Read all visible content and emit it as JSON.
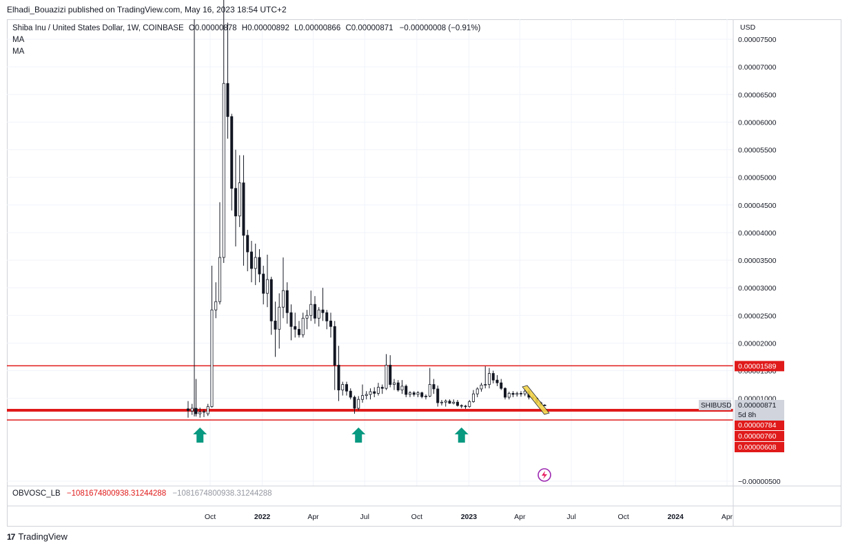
{
  "header": {
    "published": "Elhadi_Bouazizi published on TradingView.com, May 16, 2023 18:54 UTC+2"
  },
  "legend": {
    "symbol": "Shiba Inu / United States Dollar, 1W, COINBASE",
    "o_label": "O",
    "o": "0.00000878",
    "h_label": "H",
    "h": "0.00000892",
    "l_label": "L",
    "l": "0.00000866",
    "c_label": "C",
    "c": "0.00000871",
    "change": "−0.00000008 (−0.91%)",
    "ma1": "MA",
    "ma2": "MA"
  },
  "oscillator": {
    "name": "OBVOSC_LB",
    "value": "−1081674800938.31244288",
    "value2": "−1081674800938.31244288"
  },
  "axis": {
    "currency": "USD"
  },
  "footer": {
    "brand": "TradingView"
  },
  "colors": {
    "up": "#ffffff",
    "down": "#131722",
    "level": "#e01a1a",
    "arrow": "#089981",
    "grid": "#f0f3fa"
  },
  "chart_data": {
    "type": "candlestick",
    "symbol": "SHIBUSD",
    "y_ticks": [
      -5e-06,
      1e-05,
      1.5e-05,
      2e-05,
      2.5e-05,
      3e-05,
      3.5e-05,
      4e-05,
      4.5e-05,
      5e-05,
      5.5e-05,
      6e-05,
      6.5e-05,
      7e-05,
      7.5e-05
    ],
    "y_tick_labels": [
      "−0.00000500",
      "0.00001000",
      "0.00001500",
      "0.00002000",
      "0.00002500",
      "0.00003000",
      "0.00003500",
      "0.00004000",
      "0.00004500",
      "0.00005000",
      "0.00005500",
      "0.00006000",
      "0.00006500",
      "0.00007000",
      "0.00007500"
    ],
    "ylim": [
      -6e-06,
      7.85e-05
    ],
    "x_labels": [
      "Oct",
      "2022",
      "Apr",
      "Jul",
      "Oct",
      "2023",
      "Apr",
      "Jul",
      "Oct",
      "2024",
      "Apr"
    ],
    "x_label_dates": [
      "2021-10-01",
      "2022-01-01",
      "2022-04-01",
      "2022-07-01",
      "2022-10-01",
      "2023-01-01",
      "2023-04-01",
      "2023-07-01",
      "2023-10-01",
      "2024-01-01",
      "2024-04-01"
    ],
    "horizontal_levels": [
      {
        "value": 1.589e-05,
        "label": "0.00001589",
        "color": "#e01a1a"
      },
      {
        "value": 7.84e-06,
        "label": "0.00000784",
        "color": "#e01a1a"
      },
      {
        "value": 7.6e-06,
        "label": "0.00000760",
        "color": "#e01a1a"
      },
      {
        "value": 6.08e-06,
        "label": "0.00000608",
        "color": "#e01a1a"
      }
    ],
    "last_price": {
      "symbol": "SHIBUSD",
      "value": "0.00000871",
      "countdown": "5d 8h"
    },
    "buy_arrows": [
      "2021-09-13",
      "2022-06-20",
      "2022-12-19"
    ],
    "candles": [
      {
        "d": "2021-08-23",
        "o": 8.1e-06,
        "h": 9.5e-06,
        "l": 6.5e-06,
        "c": 7.8e-06
      },
      {
        "d": "2021-08-30",
        "o": 7.7e-06,
        "h": 9e-06,
        "l": 7e-06,
        "c": 8.2e-06
      },
      {
        "d": "2021-09-06",
        "o": 8.2e-06,
        "h": 1.35e-05,
        "l": 6.7e-06,
        "c": 7.2e-06
      },
      {
        "d": "2021-09-13",
        "o": 7.2e-06,
        "h": 8.3e-06,
        "l": 6.5e-06,
        "c": 7.5e-06
      },
      {
        "d": "2021-09-20",
        "o": 7.5e-06,
        "h": 8e-06,
        "l": 6.6e-06,
        "c": 7.6e-06
      },
      {
        "d": "2021-09-27",
        "o": 7.2e-06,
        "h": 9e-06,
        "l": 6.8e-06,
        "c": 8.5e-06
      },
      {
        "d": "2021-10-04",
        "o": 8.5e-06,
        "h": 3.4e-05,
        "l": 8.3e-06,
        "c": 2.6e-05
      },
      {
        "d": "2021-10-11",
        "o": 2.6e-05,
        "h": 3.1e-05,
        "l": 2.45e-05,
        "c": 2.75e-05
      },
      {
        "d": "2021-10-18",
        "o": 2.75e-05,
        "h": 4.55e-05,
        "l": 2.7e-05,
        "c": 3.55e-05
      },
      {
        "d": "2021-10-25",
        "o": 3.55e-05,
        "h": 8.8e-05,
        "l": 3.45e-05,
        "c": 6.7e-05
      },
      {
        "d": "2021-11-01",
        "o": 6.7e-05,
        "h": 7.8e-05,
        "l": 5.7e-05,
        "c": 6.1e-05
      },
      {
        "d": "2021-11-08",
        "o": 6.1e-05,
        "h": 6.15e-05,
        "l": 4.4e-05,
        "c": 4.8e-05
      },
      {
        "d": "2021-11-15",
        "o": 4.8e-05,
        "h": 5.5e-05,
        "l": 3.75e-05,
        "c": 4.3e-05
      },
      {
        "d": "2021-11-22",
        "o": 4.3e-05,
        "h": 5.4e-05,
        "l": 4.1e-05,
        "c": 4.9e-05
      },
      {
        "d": "2021-11-29",
        "o": 4.9e-05,
        "h": 5.4e-05,
        "l": 3.4e-05,
        "c": 3.95e-05
      },
      {
        "d": "2021-12-06",
        "o": 3.95e-05,
        "h": 4.05e-05,
        "l": 3.3e-05,
        "c": 3.65e-05
      },
      {
        "d": "2021-12-13",
        "o": 3.65e-05,
        "h": 3.85e-05,
        "l": 3.1e-05,
        "c": 3.35e-05
      },
      {
        "d": "2021-12-20",
        "o": 3.35e-05,
        "h": 3.8e-05,
        "l": 3.05e-05,
        "c": 3.55e-05
      },
      {
        "d": "2021-12-27",
        "o": 3.55e-05,
        "h": 3.7e-05,
        "l": 3.1e-05,
        "c": 3.25e-05
      },
      {
        "d": "2022-01-03",
        "o": 3.25e-05,
        "h": 3.4e-05,
        "l": 2.7e-05,
        "c": 2.9e-05
      },
      {
        "d": "2022-01-10",
        "o": 2.9e-05,
        "h": 3.6e-05,
        "l": 2.65e-05,
        "c": 3.15e-05
      },
      {
        "d": "2022-01-17",
        "o": 3.15e-05,
        "h": 3.2e-05,
        "l": 2.15e-05,
        "c": 2.4e-05
      },
      {
        "d": "2022-01-24",
        "o": 2.4e-05,
        "h": 2.75e-05,
        "l": 1.75e-05,
        "c": 2.25e-05
      },
      {
        "d": "2022-01-31",
        "o": 2.25e-05,
        "h": 2.9e-05,
        "l": 1.9e-05,
        "c": 2.65e-05
      },
      {
        "d": "2022-02-07",
        "o": 2.65e-05,
        "h": 3.55e-05,
        "l": 2.45e-05,
        "c": 2.95e-05
      },
      {
        "d": "2022-02-14",
        "o": 2.95e-05,
        "h": 3.1e-05,
        "l": 2.35e-05,
        "c": 2.55e-05
      },
      {
        "d": "2022-02-21",
        "o": 2.55e-05,
        "h": 2.7e-05,
        "l": 2.05e-05,
        "c": 2.3e-05
      },
      {
        "d": "2022-02-28",
        "o": 2.3e-05,
        "h": 2.55e-05,
        "l": 2.1e-05,
        "c": 2.25e-05
      },
      {
        "d": "2022-03-07",
        "o": 2.25e-05,
        "h": 2.4e-05,
        "l": 2.1e-05,
        "c": 2.15e-05
      },
      {
        "d": "2022-03-14",
        "o": 2.15e-05,
        "h": 2.55e-05,
        "l": 2.1e-05,
        "c": 2.45e-05
      },
      {
        "d": "2022-03-21",
        "o": 2.45e-05,
        "h": 2.6e-05,
        "l": 2.25e-05,
        "c": 2.5e-05
      },
      {
        "d": "2022-03-28",
        "o": 2.5e-05,
        "h": 2.95e-05,
        "l": 2.4e-05,
        "c": 2.7e-05
      },
      {
        "d": "2022-04-04",
        "o": 2.7e-05,
        "h": 2.85e-05,
        "l": 2.35e-05,
        "c": 2.45e-05
      },
      {
        "d": "2022-04-11",
        "o": 2.45e-05,
        "h": 2.65e-05,
        "l": 2.3e-05,
        "c": 2.6e-05
      },
      {
        "d": "2022-04-18",
        "o": 2.6e-05,
        "h": 3e-05,
        "l": 2.4e-05,
        "c": 2.55e-05
      },
      {
        "d": "2022-04-25",
        "o": 2.55e-05,
        "h": 2.6e-05,
        "l": 2.25e-05,
        "c": 2.4e-05
      },
      {
        "d": "2022-05-02",
        "o": 2.4e-05,
        "h": 2.55e-05,
        "l": 2.1e-05,
        "c": 2.3e-05
      },
      {
        "d": "2022-05-09",
        "o": 2.3e-05,
        "h": 2.4e-05,
        "l": 1.15e-05,
        "c": 1.6e-05
      },
      {
        "d": "2022-05-16",
        "o": 1.6e-05,
        "h": 1.95e-05,
        "l": 9.5e-06,
        "c": 1.15e-05
      },
      {
        "d": "2022-05-23",
        "o": 1.15e-05,
        "h": 1.3e-05,
        "l": 1.05e-05,
        "c": 1.25e-05
      },
      {
        "d": "2022-05-30",
        "o": 1.25e-05,
        "h": 1.3e-05,
        "l": 1.05e-05,
        "c": 1.13e-05
      },
      {
        "d": "2022-06-06",
        "o": 1.13e-05,
        "h": 1.18e-05,
        "l": 9.8e-06,
        "c": 1.02e-05
      },
      {
        "d": "2022-06-13",
        "o": 1.02e-05,
        "h": 1.05e-05,
        "l": 7.2e-06,
        "c": 8.2e-06
      },
      {
        "d": "2022-06-20",
        "o": 8.2e-06,
        "h": 1.04e-05,
        "l": 7.8e-06,
        "c": 9.8e-06
      },
      {
        "d": "2022-06-27",
        "o": 9.8e-06,
        "h": 1.25e-05,
        "l": 9.2e-06,
        "c": 1.05e-05
      },
      {
        "d": "2022-07-04",
        "o": 1.05e-05,
        "h": 1.13e-05,
        "l": 9.8e-06,
        "c": 1.07e-05
      },
      {
        "d": "2022-07-11",
        "o": 1.07e-05,
        "h": 1.18e-05,
        "l": 9.8e-06,
        "c": 1.12e-05
      },
      {
        "d": "2022-07-18",
        "o": 1.12e-05,
        "h": 1.2e-05,
        "l": 1.02e-05,
        "c": 1.09e-05
      },
      {
        "d": "2022-07-25",
        "o": 1.09e-05,
        "h": 1.28e-05,
        "l": 1.05e-05,
        "c": 1.2e-05
      },
      {
        "d": "2022-08-01",
        "o": 1.2e-05,
        "h": 1.25e-05,
        "l": 1.08e-05,
        "c": 1.18e-05
      },
      {
        "d": "2022-08-08",
        "o": 1.18e-05,
        "h": 1.8e-05,
        "l": 1.15e-05,
        "c": 1.6e-05
      },
      {
        "d": "2022-08-15",
        "o": 1.6e-05,
        "h": 1.78e-05,
        "l": 1.2e-05,
        "c": 1.25e-05
      },
      {
        "d": "2022-08-22",
        "o": 1.25e-05,
        "h": 1.35e-05,
        "l": 1.15e-05,
        "c": 1.28e-05
      },
      {
        "d": "2022-08-29",
        "o": 1.28e-05,
        "h": 1.33e-05,
        "l": 1.12e-05,
        "c": 1.15e-05
      },
      {
        "d": "2022-09-05",
        "o": 1.15e-05,
        "h": 1.33e-05,
        "l": 1.08e-05,
        "c": 1.22e-05
      },
      {
        "d": "2022-09-12",
        "o": 1.22e-05,
        "h": 1.25e-05,
        "l": 1.02e-05,
        "c": 1.07e-05
      },
      {
        "d": "2022-09-19",
        "o": 1.07e-05,
        "h": 1.13e-05,
        "l": 1.02e-05,
        "c": 1.1e-05
      },
      {
        "d": "2022-09-26",
        "o": 1.1e-05,
        "h": 1.13e-05,
        "l": 1.03e-05,
        "c": 1.07e-05
      },
      {
        "d": "2022-10-03",
        "o": 1.07e-05,
        "h": 1.13e-05,
        "l": 1.02e-05,
        "c": 1.1e-05
      },
      {
        "d": "2022-10-10",
        "o": 1.1e-05,
        "h": 1.12e-05,
        "l": 1e-05,
        "c": 1.03e-05
      },
      {
        "d": "2022-10-17",
        "o": 1.03e-05,
        "h": 1.07e-05,
        "l": 9.8e-06,
        "c": 1.04e-05
      },
      {
        "d": "2022-10-24",
        "o": 1.04e-05,
        "h": 1.55e-05,
        "l": 1.02e-05,
        "c": 1.25e-05
      },
      {
        "d": "2022-10-31",
        "o": 1.25e-05,
        "h": 1.35e-05,
        "l": 1.08e-05,
        "c": 1.17e-05
      },
      {
        "d": "2022-11-07",
        "o": 1.17e-05,
        "h": 1.23e-05,
        "l": 8.5e-06,
        "c": 9.2e-06
      },
      {
        "d": "2022-11-14",
        "o": 9.2e-06,
        "h": 9.7e-06,
        "l": 8.7e-06,
        "c": 9.3e-06
      },
      {
        "d": "2022-11-21",
        "o": 9.3e-06,
        "h": 9.8e-06,
        "l": 8.5e-06,
        "c": 9.5e-06
      },
      {
        "d": "2022-11-28",
        "o": 9.5e-06,
        "h": 9.8e-06,
        "l": 9e-06,
        "c": 9.1e-06
      },
      {
        "d": "2022-12-05",
        "o": 9.1e-06,
        "h": 9.8e-06,
        "l": 8.9e-06,
        "c": 9.3e-06
      },
      {
        "d": "2022-12-12",
        "o": 9.3e-06,
        "h": 9.7e-06,
        "l": 8.5e-06,
        "c": 8.7e-06
      },
      {
        "d": "2022-12-19",
        "o": 8.7e-06,
        "h": 8.9e-06,
        "l": 8.2e-06,
        "c": 8.6e-06
      },
      {
        "d": "2022-12-26",
        "o": 8.6e-06,
        "h": 8.8e-06,
        "l": 8.1e-06,
        "c": 8.5e-06
      },
      {
        "d": "2023-01-02",
        "o": 8.5e-06,
        "h": 9.7e-06,
        "l": 8.3e-06,
        "c": 9.4e-06
      },
      {
        "d": "2023-01-09",
        "o": 9.4e-06,
        "h": 1.15e-05,
        "l": 9.2e-06,
        "c": 1.08e-05
      },
      {
        "d": "2023-01-16",
        "o": 1.08e-05,
        "h": 1.2e-05,
        "l": 1.02e-05,
        "c": 1.17e-05
      },
      {
        "d": "2023-01-23",
        "o": 1.17e-05,
        "h": 1.28e-05,
        "l": 1.12e-05,
        "c": 1.24e-05
      },
      {
        "d": "2023-01-30",
        "o": 1.24e-05,
        "h": 1.58e-05,
        "l": 1.18e-05,
        "c": 1.25e-05
      },
      {
        "d": "2023-02-06",
        "o": 1.25e-05,
        "h": 1.55e-05,
        "l": 1.18e-05,
        "c": 1.45e-05
      },
      {
        "d": "2023-02-13",
        "o": 1.45e-05,
        "h": 1.5e-05,
        "l": 1.27e-05,
        "c": 1.33e-05
      },
      {
        "d": "2023-02-20",
        "o": 1.33e-05,
        "h": 1.42e-05,
        "l": 1.22e-05,
        "c": 1.28e-05
      },
      {
        "d": "2023-02-27",
        "o": 1.28e-05,
        "h": 1.35e-05,
        "l": 1.15e-05,
        "c": 1.18e-05
      },
      {
        "d": "2023-03-06",
        "o": 1.18e-05,
        "h": 1.2e-05,
        "l": 9.8e-06,
        "c": 1.02e-05
      },
      {
        "d": "2023-03-13",
        "o": 1.02e-05,
        "h": 1.12e-05,
        "l": 9.8e-06,
        "c": 1.09e-05
      },
      {
        "d": "2023-03-20",
        "o": 1.09e-05,
        "h": 1.13e-05,
        "l": 1.02e-05,
        "c": 1.07e-05
      },
      {
        "d": "2023-03-27",
        "o": 1.07e-05,
        "h": 1.12e-05,
        "l": 1.03e-05,
        "c": 1.09e-05
      },
      {
        "d": "2023-04-03",
        "o": 1.09e-05,
        "h": 1.13e-05,
        "l": 1.03e-05,
        "c": 1.08e-05
      },
      {
        "d": "2023-04-10",
        "o": 1.08e-05,
        "h": 1.18e-05,
        "l": 1.04e-05,
        "c": 1.13e-05
      },
      {
        "d": "2023-04-17",
        "o": 1.13e-05,
        "h": 1.15e-05,
        "l": 9.8e-06,
        "c": 1.02e-05
      },
      {
        "d": "2023-04-24",
        "o": 1.02e-05,
        "h": 1.06e-05,
        "l": 9.8e-06,
        "c": 1e-05
      },
      {
        "d": "2023-05-01",
        "o": 1e-05,
        "h": 1.02e-05,
        "l": 9.1e-06,
        "c": 9.2e-06
      },
      {
        "d": "2023-05-08",
        "o": 9.2e-06,
        "h": 9.4e-06,
        "l": 8.6e-06,
        "c": 8.8e-06
      },
      {
        "d": "2023-05-15",
        "o": 8.78e-06,
        "h": 8.92e-06,
        "l": 8.66e-06,
        "c": 8.71e-06
      }
    ]
  }
}
